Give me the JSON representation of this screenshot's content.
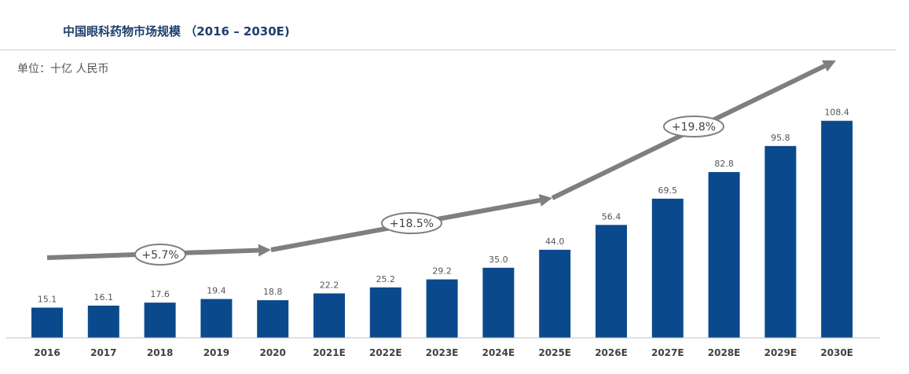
{
  "header": {
    "title": "中国眼科药物市场规模 （2016 – 2030E)",
    "unit": "单位：十亿 人民币"
  },
  "colors": {
    "bar": "#0a4a8c",
    "arrow": "#7f7f7f",
    "axis": "#bfbfbf",
    "title": "#1f3f6e"
  },
  "chart_data": {
    "type": "bar",
    "title": "中国眼科药物市场规模 （2016 – 2030E)",
    "ylabel": "单位：十亿 人民币",
    "xlabel": "",
    "categories": [
      "2016",
      "2017",
      "2018",
      "2019",
      "2020",
      "2021E",
      "2022E",
      "2023E",
      "2024E",
      "2025E",
      "2026E",
      "2027E",
      "2028E",
      "2029E",
      "2030E"
    ],
    "values": [
      15.1,
      16.1,
      17.6,
      19.4,
      18.8,
      22.2,
      25.2,
      29.2,
      35.0,
      44.0,
      56.4,
      69.5,
      82.8,
      95.8,
      108.4
    ],
    "value_labels": [
      "15.1",
      "16.1",
      "17.6",
      "19.4",
      "18.8",
      "22.2",
      "25.2",
      "29.2",
      "35.0",
      "44.0",
      "56.4",
      "69.5",
      "82.8",
      "95.8",
      "108.4"
    ],
    "ylim": [
      0,
      113
    ],
    "grid": false,
    "annotations": [
      {
        "label": "+5.7%",
        "from": "2016",
        "to": "2020"
      },
      {
        "label": "+18.5%",
        "from": "2020",
        "to": "2025E"
      },
      {
        "label": "+19.8%",
        "from": "2025E",
        "to": "2030E"
      }
    ]
  }
}
